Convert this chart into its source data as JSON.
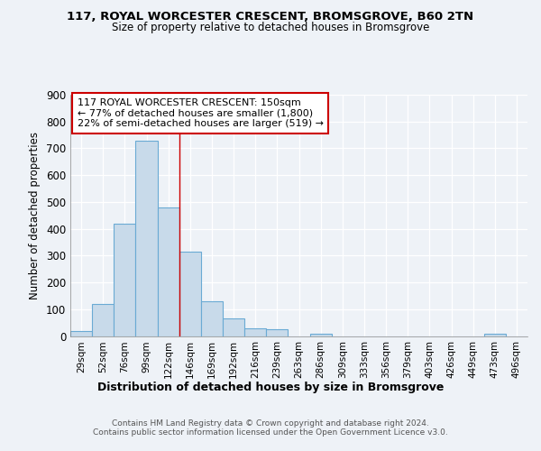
{
  "title1": "117, ROYAL WORCESTER CRESCENT, BROMSGROVE, B60 2TN",
  "title2": "Size of property relative to detached houses in Bromsgrove",
  "xlabel": "Distribution of detached houses by size in Bromsgrove",
  "ylabel": "Number of detached properties",
  "categories": [
    "29sqm",
    "52sqm",
    "76sqm",
    "99sqm",
    "122sqm",
    "146sqm",
    "169sqm",
    "192sqm",
    "216sqm",
    "239sqm",
    "263sqm",
    "286sqm",
    "309sqm",
    "333sqm",
    "356sqm",
    "379sqm",
    "403sqm",
    "426sqm",
    "449sqm",
    "473sqm",
    "496sqm"
  ],
  "values": [
    20,
    120,
    420,
    730,
    480,
    315,
    130,
    65,
    30,
    25,
    0,
    10,
    0,
    0,
    0,
    0,
    0,
    0,
    0,
    10,
    0
  ],
  "bar_color": "#c8daea",
  "bar_edge_color": "#6aaad4",
  "marker_line_index": 5,
  "marker_line_color": "#cc0000",
  "annotation_text": "117 ROYAL WORCESTER CRESCENT: 150sqm\n← 77% of detached houses are smaller (1,800)\n22% of semi-detached houses are larger (519) →",
  "annotation_box_color": "#ffffff",
  "annotation_box_edge": "#cc0000",
  "ylim": [
    0,
    900
  ],
  "yticks": [
    0,
    100,
    200,
    300,
    400,
    500,
    600,
    700,
    800,
    900
  ],
  "footer": "Contains HM Land Registry data © Crown copyright and database right 2024.\nContains public sector information licensed under the Open Government Licence v3.0.",
  "bg_color": "#eef2f7"
}
